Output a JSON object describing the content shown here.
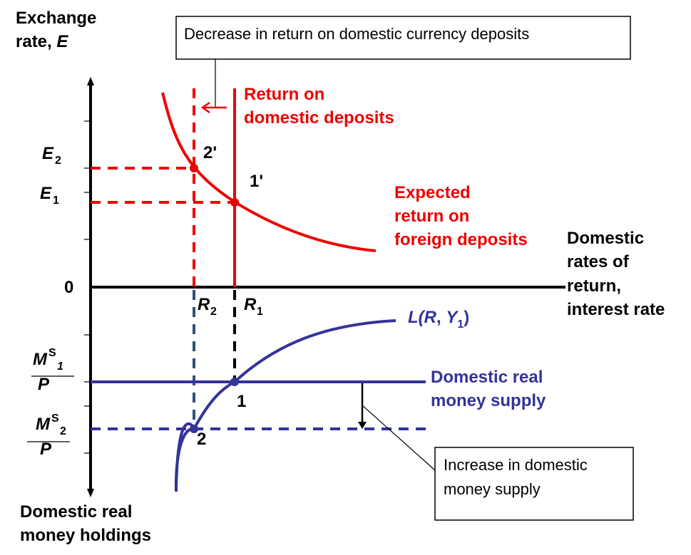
{
  "axes": {
    "y_label_line1": "Exchange",
    "y_label_line2": "rate, ",
    "y_label_var": "E",
    "origin": "0",
    "x_label_lines": [
      "Domestic",
      "rates of",
      "return,",
      "interest rate"
    ],
    "bottom_label_lines": [
      "Domestic real",
      "money holdings"
    ]
  },
  "callouts": {
    "top": "Decrease in return on domestic currency deposits",
    "bottom_line1": "Increase in domestic",
    "bottom_line2": "money supply"
  },
  "upper_panel": {
    "domestic_return_line1": "Return on",
    "domestic_return_line2": "domestic deposits",
    "foreign_return_lines": [
      "Expected",
      "return on",
      "foreign deposits"
    ],
    "e2_main": "E",
    "e2_sub": "2",
    "e1_main": "E",
    "e1_sub": "1",
    "point_2prime": "2'",
    "point_1prime": "1'"
  },
  "lower_panel": {
    "r2_main": "R",
    "r2_sub": "2",
    "r1_main": "R",
    "r1_sub": "1",
    "l_func": {
      "a": "L(",
      "b": "R",
      "c": ", ",
      "d": "Y",
      "e": "1",
      "f": ")"
    },
    "ms1": {
      "m": "M",
      "s": "S",
      "n": "1",
      "p": "P"
    },
    "ms2": {
      "m": "M",
      "s": "S",
      "n": "2",
      "p": "P"
    },
    "money_supply_line1": "Domestic  real",
    "money_supply_line2": "money supply",
    "point_1": "1",
    "point_2": "2"
  },
  "colors": {
    "red": "#ee0000",
    "blue": "#333399",
    "navy_dash": "#2f4f7a",
    "black": "#000000"
  }
}
